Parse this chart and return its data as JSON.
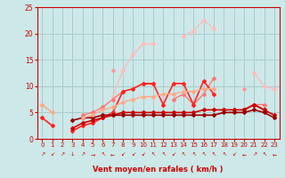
{
  "title": "",
  "xlabel": "Vent moyen/en rafales ( km/h )",
  "bg_color": "#cce8e8",
  "grid_color": "#aacccc",
  "x": [
    0,
    1,
    2,
    3,
    4,
    5,
    6,
    7,
    8,
    9,
    10,
    11,
    12,
    13,
    14,
    15,
    16,
    17,
    18,
    19,
    20,
    21,
    22,
    23
  ],
  "series": [
    {
      "comment": "lightest pink - rises high to ~22 at x=16, then drops",
      "color": "#ffbbbb",
      "lw": 1.0,
      "values": [
        6.5,
        5.0,
        null,
        null,
        null,
        null,
        null,
        8.0,
        13.0,
        16.0,
        18.0,
        18.0,
        null,
        null,
        19.5,
        20.5,
        22.5,
        21.0,
        null,
        null,
        null,
        12.5,
        10.0,
        9.5
      ]
    },
    {
      "comment": "medium pink - rises to ~13 at x=7, then goes higher later",
      "color": "#ff9999",
      "lw": 1.0,
      "values": [
        null,
        null,
        null,
        null,
        null,
        null,
        null,
        13.0,
        null,
        null,
        null,
        null,
        null,
        null,
        null,
        null,
        null,
        null,
        null,
        null,
        9.5,
        null,
        null,
        null
      ]
    },
    {
      "comment": "pink-red medium - zigzag around 8-11",
      "color": "#ff7777",
      "lw": 1.0,
      "values": [
        null,
        null,
        null,
        null,
        4.5,
        5.0,
        6.0,
        7.5,
        9.0,
        null,
        10.5,
        10.5,
        null,
        7.5,
        8.5,
        6.5,
        8.5,
        11.5,
        null,
        null,
        5.5,
        6.5,
        6.5,
        null
      ]
    },
    {
      "comment": "bright red - spiky, goes to ~11 at x=14,15 then dips and rises to ~11 at x=16",
      "color": "#ff2222",
      "lw": 1.2,
      "values": [
        4.0,
        2.5,
        null,
        1.5,
        2.5,
        3.0,
        4.0,
        5.0,
        9.0,
        9.5,
        10.5,
        10.5,
        6.5,
        10.5,
        10.5,
        6.5,
        11.0,
        8.5,
        null,
        null,
        5.5,
        6.5,
        5.5,
        null
      ]
    },
    {
      "comment": "dark red flat-ish - stays low around 3-6",
      "color": "#cc0000",
      "lw": 1.2,
      "values": [
        null,
        null,
        null,
        2.0,
        3.0,
        3.5,
        4.0,
        4.5,
        5.0,
        5.0,
        5.0,
        5.0,
        5.0,
        5.0,
        5.0,
        5.0,
        5.5,
        5.5,
        5.5,
        5.5,
        5.5,
        6.5,
        5.5,
        4.5
      ]
    },
    {
      "comment": "dark maroon very flat - lowest line",
      "color": "#990000",
      "lw": 1.2,
      "values": [
        null,
        null,
        null,
        3.5,
        4.0,
        4.0,
        4.5,
        4.5,
        4.5,
        4.5,
        4.5,
        4.5,
        4.5,
        4.5,
        4.5,
        4.5,
        4.5,
        4.5,
        5.0,
        5.0,
        5.0,
        5.5,
        5.0,
        4.0
      ]
    },
    {
      "comment": "salmon/peach - gradual rise to ~9",
      "color": "#ffaa88",
      "lw": 1.0,
      "values": [
        6.5,
        5.0,
        null,
        null,
        4.0,
        4.5,
        5.5,
        6.0,
        7.0,
        7.5,
        8.0,
        8.0,
        8.5,
        8.5,
        9.0,
        9.0,
        9.5,
        9.5,
        null,
        null,
        null,
        null,
        null,
        null
      ]
    }
  ],
  "ylim": [
    0,
    25
  ],
  "yticks": [
    0,
    5,
    10,
    15,
    20,
    25
  ],
  "xlim": [
    -0.5,
    23.5
  ],
  "xticks": [
    0,
    1,
    2,
    3,
    4,
    5,
    6,
    7,
    8,
    9,
    10,
    11,
    12,
    13,
    14,
    15,
    16,
    17,
    18,
    19,
    20,
    21,
    22,
    23
  ],
  "marker": "D",
  "markersize": 2.0,
  "tick_color": "#cc0000",
  "label_color": "#cc0000",
  "arrows": [
    "↗",
    "↙",
    "↗",
    "↓",
    "↗",
    "→",
    "↖",
    "←",
    "↙",
    "↙",
    "↙",
    "↖",
    "↖",
    "↙",
    "↖",
    "↖",
    "↖",
    "↖",
    "↖",
    "↙",
    "←",
    "↗",
    "↖",
    "←"
  ]
}
